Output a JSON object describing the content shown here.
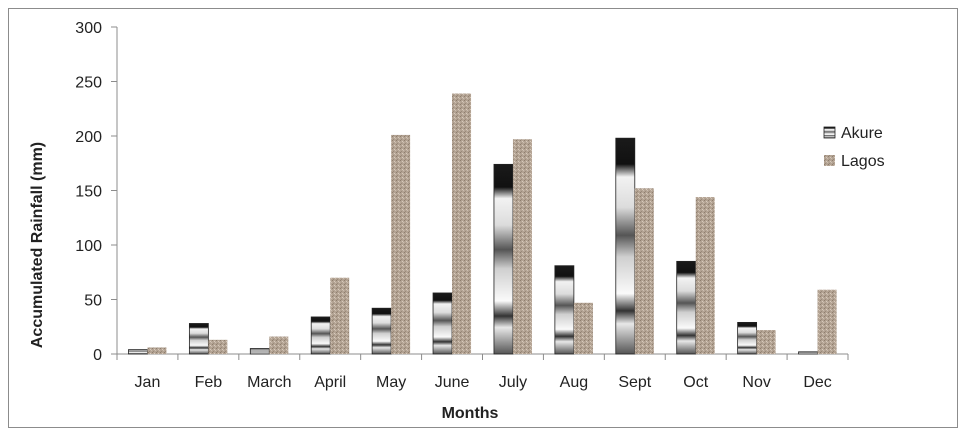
{
  "chart_data": {
    "type": "bar",
    "title": "",
    "xlabel": "Months",
    "ylabel": "Accumulated Rainfall (mm)",
    "ylim": [
      0,
      300
    ],
    "yticks": [
      "0",
      "50",
      "100",
      "150",
      "200",
      "250",
      "300"
    ],
    "categories": [
      "Jan",
      "Feb",
      "March",
      "April",
      "May",
      "June",
      "July",
      "Aug",
      "Sept",
      "Oct",
      "Nov",
      "Dec"
    ],
    "series": [
      {
        "name": "Akure",
        "color": "#3a3a3a",
        "values": [
          4,
          28,
          5,
          34,
          42,
          56,
          174,
          81,
          198,
          85,
          29,
          2
        ]
      },
      {
        "name": "Lagos",
        "color": "#b3a393",
        "values": [
          6,
          13,
          16,
          70,
          201,
          239,
          197,
          47,
          152,
          144,
          22,
          59
        ]
      }
    ],
    "grid": false,
    "legend_position": "right"
  }
}
